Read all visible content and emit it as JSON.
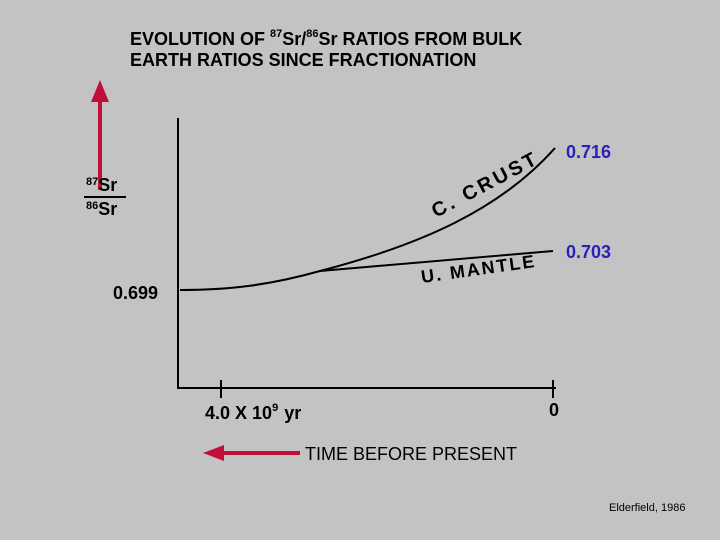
{
  "title": {
    "line1": {
      "before": "EVOLUTION OF ",
      "sup1": "87",
      "mid": "Sr/",
      "sup2": "86",
      "after": "Sr RATIOS FROM BULK"
    },
    "line2": "EARTH RATIOS SINCE FRACTIONATION"
  },
  "y_label": {
    "numerator_sup": "87",
    "numerator": "Sr",
    "denominator_sup": "86",
    "denominator": "Sr"
  },
  "labels": {
    "start_ratio": "0.699",
    "crust_ratio": "0.716",
    "mantle_ratio": "0.703",
    "crust": "C. CRUST",
    "mantle": "U. MANTLE"
  },
  "x_axis": {
    "start": "4.0 X 10",
    "start_sup": "9",
    "start_unit": "yr",
    "end": "0",
    "title": "TIME BEFORE PRESENT"
  },
  "credit": "Elderfield, 1986"
}
